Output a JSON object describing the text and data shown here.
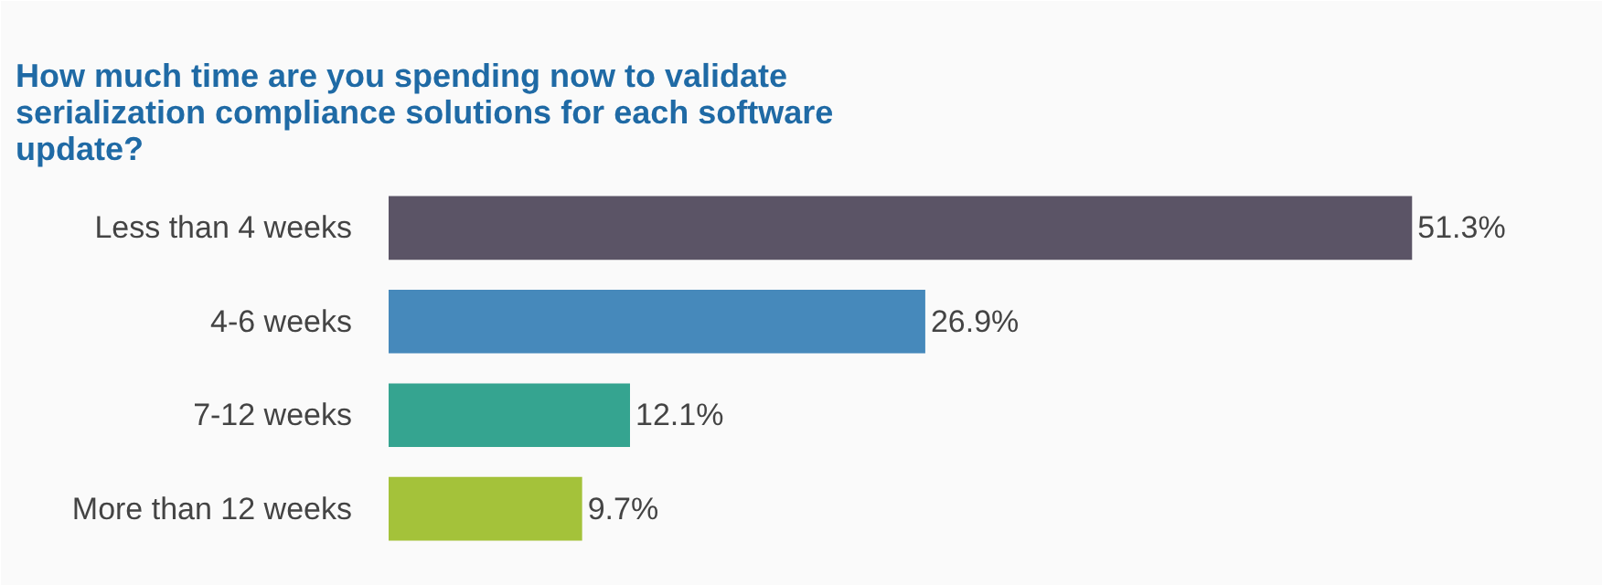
{
  "chart_data": {
    "type": "bar",
    "orientation": "horizontal",
    "title": "How much time are you spending now to validate serialization compliance solutions for each software update?",
    "categories": [
      "Less than 4 weeks",
      "4-6 weeks",
      "7-12 weeks",
      "More than 12 weeks"
    ],
    "values": [
      51.3,
      26.9,
      12.1,
      9.7
    ],
    "value_labels": [
      "51.3%",
      "26.9%",
      "12.1%",
      "9.7%"
    ],
    "colors": [
      "#5b5466",
      "#4689bb",
      "#35a490",
      "#a4c23a"
    ],
    "grid": false
  }
}
